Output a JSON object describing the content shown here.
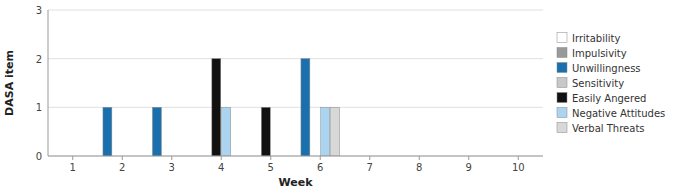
{
  "chart_data": {
    "type": "bar",
    "xlabel": "Week",
    "ylabel": "DASA item",
    "xlim": [
      0.5,
      10.5
    ],
    "ylim": [
      0,
      3
    ],
    "xticks": [
      1,
      2,
      3,
      4,
      5,
      6,
      7,
      8,
      9,
      10
    ],
    "yticks": [
      0,
      1,
      2,
      3
    ],
    "grid": true,
    "series": [
      {
        "name": "Irritability",
        "color": "#ffffff",
        "x": [],
        "values": []
      },
      {
        "name": "Impulsivity",
        "color": "#999999",
        "x": [],
        "values": []
      },
      {
        "name": "Unwillingness",
        "color": "#1a6faf",
        "x": [
          2,
          3,
          6
        ],
        "values": [
          1,
          1,
          2
        ]
      },
      {
        "name": "Sensitivity",
        "color": "#c8c8c8",
        "x": [],
        "values": []
      },
      {
        "name": "Easily Angered",
        "color": "#111111",
        "x": [
          4,
          5
        ],
        "values": [
          2,
          1
        ]
      },
      {
        "name": "Negative Attitudes",
        "color": "#aad4f0",
        "x": [
          4,
          6
        ],
        "values": [
          1,
          1
        ]
      },
      {
        "name": "Verbal Threats",
        "color": "#d8d8d8",
        "x": [
          6
        ],
        "values": [
          1
        ]
      }
    ]
  }
}
